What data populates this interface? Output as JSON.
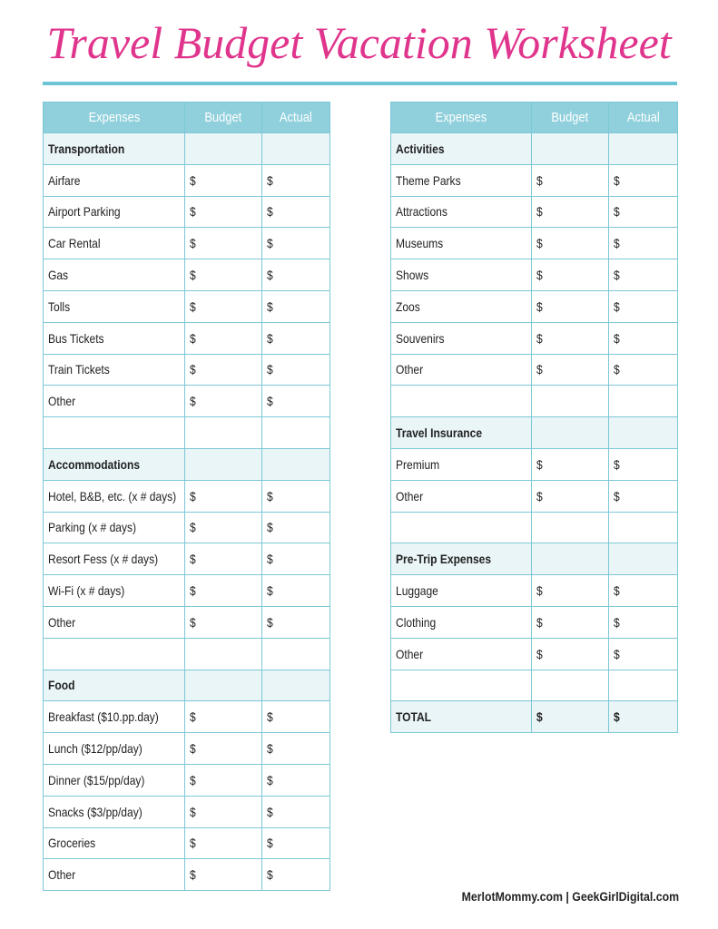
{
  "header": {
    "title": "Travel Budget Vacation Worksheet"
  },
  "tables": [
    {
      "columns": [
        "Expenses",
        "Budget",
        "Actual"
      ],
      "sections": [
        {
          "title": "Transportation",
          "items": [
            {
              "label": "Airfare",
              "budget": "$",
              "actual": "$"
            },
            {
              "label": "Airport Parking",
              "budget": "$",
              "actual": "$"
            },
            {
              "label": "Car Rental",
              "budget": "$",
              "actual": "$"
            },
            {
              "label": "Gas",
              "budget": "$",
              "actual": "$"
            },
            {
              "label": "Tolls",
              "budget": "$",
              "actual": "$"
            },
            {
              "label": "Bus Tickets",
              "budget": "$",
              "actual": "$"
            },
            {
              "label": "Train Tickets",
              "budget": "$",
              "actual": "$"
            },
            {
              "label": "Other",
              "budget": "$",
              "actual": "$"
            }
          ]
        },
        {
          "title": "Accommodations",
          "items": [
            {
              "label": "Hotel, B&B, etc. (x # days)",
              "budget": "$",
              "actual": "$"
            },
            {
              "label": "Parking (x # days)",
              "budget": "$",
              "actual": "$"
            },
            {
              "label": "Resort Fess (x # days)",
              "budget": "$",
              "actual": "$"
            },
            {
              "label": "Wi-Fi  (x # days)",
              "budget": "$",
              "actual": "$"
            },
            {
              "label": "Other",
              "budget": "$",
              "actual": "$"
            }
          ]
        },
        {
          "title": "Food",
          "items": [
            {
              "label": "Breakfast ($10.pp.day)",
              "budget": "$",
              "actual": "$"
            },
            {
              "label": "Lunch ($12/pp/day)",
              "budget": "$",
              "actual": "$"
            },
            {
              "label": "Dinner ($15/pp/day)",
              "budget": "$",
              "actual": "$"
            },
            {
              "label": "Snacks ($3/pp/day)",
              "budget": "$",
              "actual": "$"
            },
            {
              "label": "Groceries",
              "budget": "$",
              "actual": "$"
            },
            {
              "label": "Other",
              "budget": "$",
              "actual": "$"
            }
          ]
        }
      ]
    },
    {
      "columns": [
        "Expenses",
        "Budget",
        "Actual"
      ],
      "sections": [
        {
          "title": "Activities",
          "items": [
            {
              "label": "Theme Parks",
              "budget": "$",
              "actual": "$"
            },
            {
              "label": "Attractions",
              "budget": "$",
              "actual": "$"
            },
            {
              "label": "Museums",
              "budget": "$",
              "actual": "$"
            },
            {
              "label": "Shows",
              "budget": "$",
              "actual": "$"
            },
            {
              "label": "Zoos",
              "budget": "$",
              "actual": "$"
            },
            {
              "label": "Souvenirs",
              "budget": "$",
              "actual": "$"
            },
            {
              "label": "Other",
              "budget": "$",
              "actual": "$"
            }
          ]
        },
        {
          "title": "Travel Insurance",
          "items": [
            {
              "label": "Premium",
              "budget": "$",
              "actual": "$"
            },
            {
              "label": "Other",
              "budget": "$",
              "actual": "$"
            }
          ]
        },
        {
          "title": "Pre-Trip Expenses",
          "items": [
            {
              "label": "Luggage",
              "budget": "$",
              "actual": "$"
            },
            {
              "label": "Clothing",
              "budget": "$",
              "actual": "$"
            },
            {
              "label": "Other",
              "budget": "$",
              "actual": "$"
            }
          ]
        }
      ],
      "total": {
        "label": "TOTAL",
        "budget": "$",
        "actual": "$"
      }
    }
  ],
  "footer": {
    "text": "MerlotMommy.com | GeekGirlDigital.com"
  }
}
